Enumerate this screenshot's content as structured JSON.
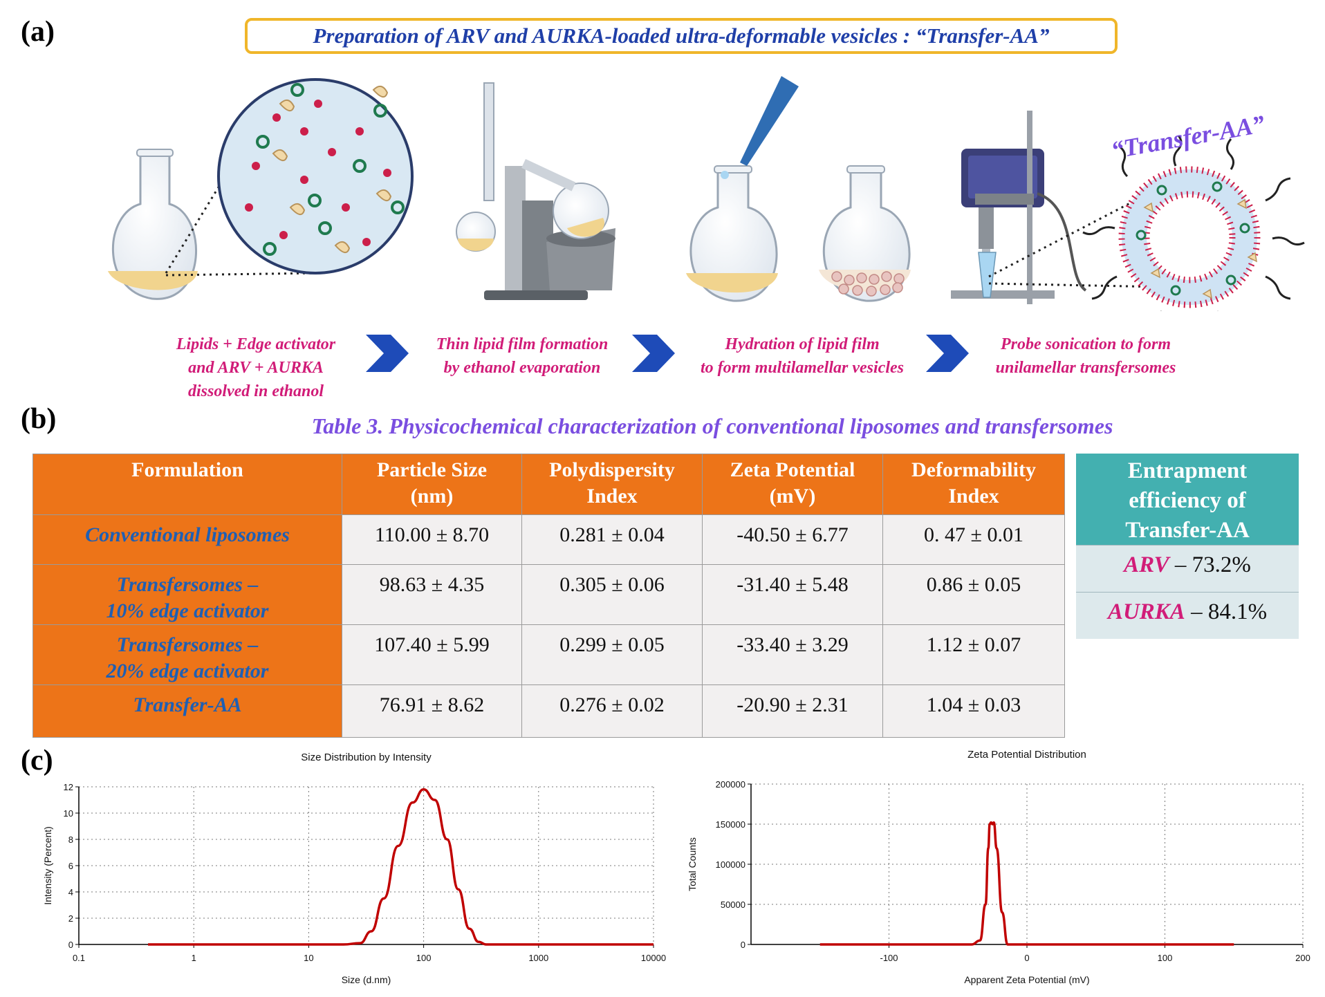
{
  "panels": {
    "a": "(a)",
    "b": "(b)",
    "c": "(c)"
  },
  "prep_title": "Preparation of ARV and AURKA-loaded ultra-deformable vesicles : “Transfer-AA”",
  "vesicle_label": "“Transfer-AA”",
  "steps": [
    {
      "lines": [
        "Lipids + Edge activator",
        "and ARV + AURKA",
        "dissolved in ethanol"
      ]
    },
    {
      "lines": [
        "Thin lipid film formation",
        "by ethanol evaporation"
      ]
    },
    {
      "lines": [
        "Hydration of lipid film",
        "to form multilamellar vesicles"
      ]
    },
    {
      "lines": [
        "Probe sonication to form",
        "unilamellar transfersomes"
      ]
    }
  ],
  "table3": {
    "title": "Table 3. Physicochemical characterization of conventional liposomes and transfersomes",
    "headers": [
      [
        "Formulation"
      ],
      [
        "Particle Size",
        "(nm)"
      ],
      [
        "Polydispersity",
        "Index"
      ],
      [
        "Zeta Potential",
        "(mV)"
      ],
      [
        "Deformability",
        "Index"
      ]
    ],
    "rows": [
      {
        "formulation": [
          "Conventional liposomes"
        ],
        "size": "110.00 ± 8.70",
        "pdi": "0.281 ± 0.04",
        "zeta": "-40.50 ± 6.77",
        "deform": "0. 47 ± 0.01"
      },
      {
        "formulation": [
          "Transfersomes –",
          "10% edge activator"
        ],
        "size": "98.63 ± 4.35",
        "pdi": "0.305 ± 0.06",
        "zeta": "-31.40 ± 5.48",
        "deform": "0.86 ± 0.05"
      },
      {
        "formulation": [
          "Transfersomes –",
          "20% edge activator"
        ],
        "size": "107.40 ± 5.99",
        "pdi": "0.299 ± 0.05",
        "zeta": "-33.40 ± 3.29",
        "deform": "1.12 ± 0.07"
      },
      {
        "formulation": [
          "Transfer-AA"
        ],
        "size": "76.91 ± 8.62",
        "pdi": "0.276 ± 0.02",
        "zeta": "-20.90 ± 2.31",
        "deform": "1.04 ± 0.03"
      }
    ]
  },
  "entrapment": {
    "header": [
      "Entrapment",
      "efficiency of",
      "Transfer-AA"
    ],
    "rows": [
      {
        "drug": "ARV",
        "value": " – 73.2%"
      },
      {
        "drug": "AURKA",
        "value": " – 84.1%"
      }
    ]
  },
  "chart_data": [
    {
      "type": "line",
      "title": "Size Distribution by Intensity",
      "xlabel": "Size (d.nm)",
      "ylabel": "Intensity (Percent)",
      "x_scale": "log",
      "xlim": [
        0.1,
        10000
      ],
      "ylim": [
        0,
        12
      ],
      "x_ticks": [
        "0.1",
        "1",
        "10",
        "100",
        "1000",
        "10000"
      ],
      "y_ticks": [
        "0",
        "2",
        "4",
        "6",
        "8",
        "10",
        "12"
      ],
      "grid": true,
      "color": "#c00000",
      "series": [
        {
          "x": [
            0.4,
            20,
            28,
            35,
            45,
            60,
            80,
            100,
            125,
            160,
            200,
            250,
            300,
            350,
            10000
          ],
          "y": [
            0,
            0,
            0.1,
            1.0,
            3.5,
            7.5,
            10.8,
            11.8,
            11.0,
            8.0,
            4.2,
            1.2,
            0.2,
            0,
            0
          ]
        }
      ]
    },
    {
      "type": "line",
      "title": "Zeta Potential Distribution",
      "xlabel": "Apparent Zeta Potential (mV)",
      "ylabel": "Total Counts",
      "xlim": [
        -200,
        200
      ],
      "ylim": [
        0,
        200000
      ],
      "x_ticks": [
        "-100",
        "0",
        "100",
        "200"
      ],
      "y_ticks": [
        "0",
        "50000",
        "100000",
        "150000",
        "200000"
      ],
      "grid": true,
      "color": "#c00000",
      "series": [
        {
          "x": [
            -150,
            -40,
            -34,
            -30,
            -28,
            -27,
            -26,
            -25,
            -24,
            -22,
            -18,
            -14,
            150
          ],
          "y": [
            0,
            0,
            5000,
            50000,
            120000,
            150000,
            152000,
            150000,
            152000,
            120000,
            40000,
            0,
            0
          ]
        }
      ]
    }
  ]
}
